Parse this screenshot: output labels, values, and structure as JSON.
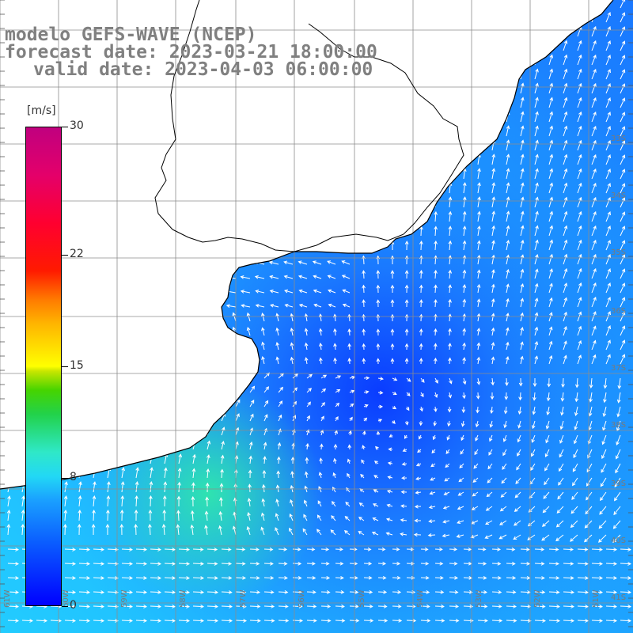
{
  "title": {
    "line1": "modelo GEFS-WAVE (NCEP)",
    "line2": "forecast date: 2023-03-21 18:00:00",
    "line3": "valid date: 2023-04-03 06:00:00"
  },
  "colorbar": {
    "units": "[m/s]",
    "ticks": [
      {
        "label": "30",
        "value": 30
      },
      {
        "label": "22",
        "value": 22
      },
      {
        "label": "15",
        "value": 15
      },
      {
        "label": "8",
        "value": 8
      },
      {
        "label": "0",
        "value": 0
      }
    ],
    "range": [
      0,
      30
    ],
    "colors": [
      "#0000ff",
      "#1aa0ff",
      "#2fe8c8",
      "#46d400",
      "#ffff00",
      "#ff7a00",
      "#ff0000",
      "#c0007f"
    ]
  },
  "grid": {
    "longitude_labels": [
      "61W",
      "60W",
      "59W",
      "58W",
      "57W",
      "56W",
      "55W",
      "54W",
      "53W",
      "52W",
      "51W"
    ],
    "latitude_labels": [
      "33S",
      "34S",
      "35S",
      "36S",
      "37S",
      "38S",
      "39S",
      "40S",
      "41S"
    ]
  },
  "map": {
    "land_color": "#ffffff",
    "coastline_color": "#000000",
    "vector_color": "#ffffff",
    "ocean_colors": {
      "deep_blue": "#0a3cff",
      "mid_blue": "#1a78ff",
      "light_blue": "#1ea8ff",
      "cyan": "#22ccff",
      "green_cyan": "#2fe3b0"
    }
  }
}
